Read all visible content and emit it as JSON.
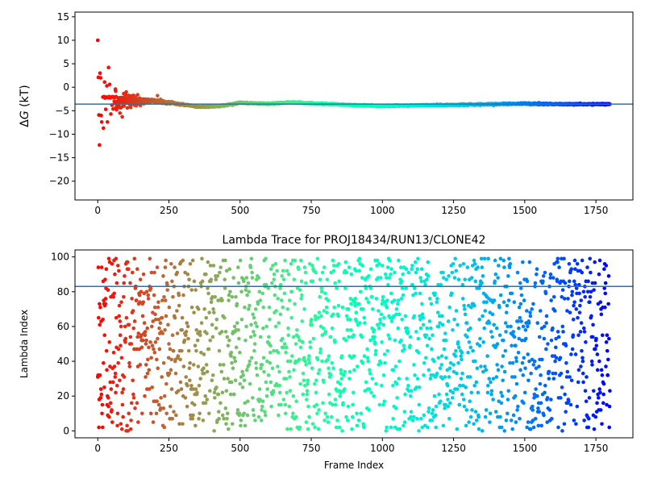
{
  "chart_data": [
    {
      "type": "scatter",
      "title": "",
      "xlabel": "",
      "ylabel": "ΔG (kT)",
      "ylabel_parts": {
        "delta": "Δ",
        "var": "G",
        "unit": " (kT)"
      },
      "xlim": [
        -80,
        1880
      ],
      "ylim": [
        -24,
        16
      ],
      "xticks": [
        0,
        250,
        500,
        750,
        1000,
        1250,
        1500,
        1750
      ],
      "yticks": [
        -20,
        -15,
        -10,
        -5,
        0,
        5,
        10,
        15
      ],
      "hline": {
        "y": -3.6,
        "color": "#1f77b4"
      },
      "colormap": "rainbow",
      "n_points": 1800,
      "series_description": "Running free-energy estimate vs. frame; noisy early then converging near -3.6",
      "early_points": [
        [
          0,
          10.0
        ],
        [
          2,
          2.1
        ],
        [
          4,
          -5.9
        ],
        [
          6,
          -12.3
        ],
        [
          8,
          3.0
        ],
        [
          10,
          2.0
        ],
        [
          12,
          -6.0
        ],
        [
          14,
          -7.4
        ],
        [
          18,
          -2.1
        ],
        [
          20,
          -8.7
        ],
        [
          22,
          -2.0
        ],
        [
          24,
          1.1
        ],
        [
          26,
          -2.3
        ],
        [
          28,
          -4.7
        ],
        [
          30,
          -2.1
        ],
        [
          32,
          0.3
        ],
        [
          34,
          -7.4
        ],
        [
          36,
          -2.2
        ],
        [
          38,
          4.2
        ],
        [
          40,
          -2.0
        ],
        [
          42,
          0.6
        ],
        [
          44,
          -2.3
        ],
        [
          46,
          -5.7
        ],
        [
          48,
          -2.1
        ],
        [
          50,
          -3.8
        ],
        [
          52,
          -2.0
        ],
        [
          54,
          -4.6
        ],
        [
          56,
          -2.2
        ],
        [
          58,
          -3.0
        ],
        [
          60,
          -2.1
        ],
        [
          62,
          -0.4
        ],
        [
          64,
          -2.0
        ],
        [
          66,
          -4.8
        ],
        [
          70,
          -3.4
        ],
        [
          74,
          -2.4
        ],
        [
          78,
          -5.5
        ],
        [
          82,
          -2.2
        ],
        [
          86,
          -6.3
        ],
        [
          90,
          -4.0
        ],
        [
          96,
          -2.5
        ],
        [
          100,
          -1.0
        ],
        [
          104,
          -4.4
        ],
        [
          110,
          -3.3
        ],
        [
          120,
          -2.7
        ],
        [
          130,
          -3.8
        ],
        [
          140,
          -1.6
        ],
        [
          150,
          -3.9
        ],
        [
          160,
          -2.5
        ],
        [
          175,
          -3.2
        ],
        [
          190,
          -2.6
        ],
        [
          210,
          -1.8
        ],
        [
          230,
          -2.9
        ],
        [
          250,
          -3.2
        ]
      ],
      "trend": [
        [
          100,
          -2.9
        ],
        [
          200,
          -3.0
        ],
        [
          280,
          -3.5
        ],
        [
          360,
          -4.2
        ],
        [
          430,
          -4.0
        ],
        [
          500,
          -3.3
        ],
        [
          600,
          -3.5
        ],
        [
          680,
          -3.2
        ],
        [
          750,
          -3.4
        ],
        [
          820,
          -3.6
        ],
        [
          900,
          -3.8
        ],
        [
          1000,
          -4.0
        ],
        [
          1100,
          -3.9
        ],
        [
          1200,
          -3.8
        ],
        [
          1300,
          -3.7
        ],
        [
          1400,
          -3.6
        ],
        [
          1500,
          -3.5
        ],
        [
          1600,
          -3.6
        ],
        [
          1700,
          -3.6
        ],
        [
          1800,
          -3.6
        ]
      ]
    },
    {
      "type": "scatter",
      "title": "Lambda Trace for PROJ18434/RUN13/CLONE42",
      "xlabel": "Frame Index",
      "ylabel": "Lambda Index",
      "xlim": [
        -80,
        1880
      ],
      "ylim": [
        -4,
        104
      ],
      "xticks": [
        0,
        250,
        500,
        750,
        1000,
        1250,
        1500,
        1750
      ],
      "yticks": [
        0,
        20,
        40,
        60,
        80,
        100
      ],
      "hline": {
        "y": 83,
        "color": "#1f77b4"
      },
      "colormap": "rainbow",
      "n_points": 1800,
      "value_range": [
        0,
        99
      ],
      "series_description": "Lambda index per frame, uniformly scattered between 0 and 99"
    }
  ],
  "colors": {
    "hline": "#1f77b4",
    "axes": "#000000",
    "background": "#ffffff"
  }
}
